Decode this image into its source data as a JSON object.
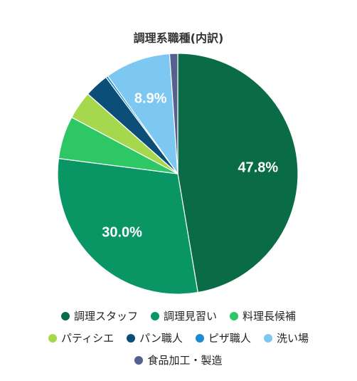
{
  "chart_data": {
    "type": "pie",
    "title": "調理系職種(内訳)",
    "categories": [
      "調理スタッフ",
      "調理見習い",
      "料理長候補",
      "パティシエ",
      "パン職人",
      "ピザ職人",
      "洗い場",
      "食品加工・製造"
    ],
    "values": [
      47.8,
      30.0,
      5.8,
      3.8,
      3.3,
      0.3,
      8.9,
      1.1
    ],
    "colors": [
      "#0a6b47",
      "#0a9664",
      "#2ec766",
      "#a6d84e",
      "#0b4f78",
      "#1e8ad4",
      "#7cc8f2",
      "#55608f"
    ],
    "data_labels": [
      "47.8%",
      "30.0%",
      "",
      "",
      "",
      "",
      "8.9%",
      ""
    ],
    "start_angle_deg": 0,
    "legend_position": "bottom"
  }
}
